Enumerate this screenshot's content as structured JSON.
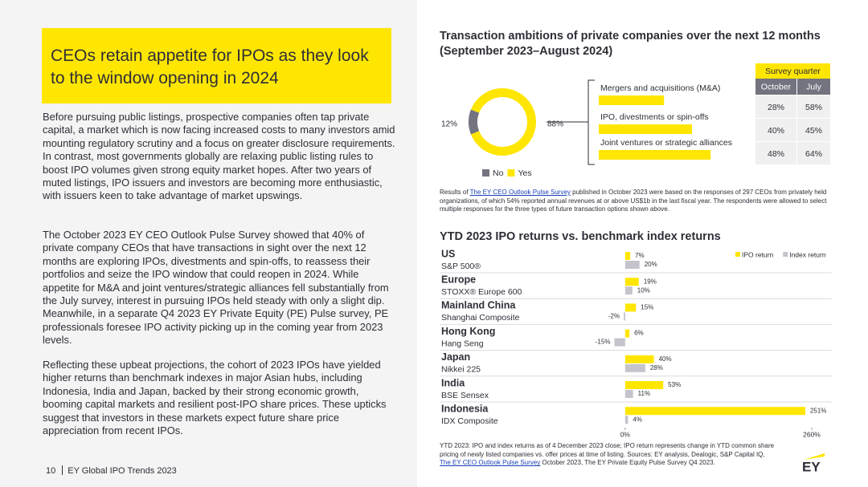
{
  "header": {
    "title": "CEOs retain appetite for IPOs as they look to the window opening in 2024"
  },
  "body": {
    "paragraphs": [
      "Before pursuing public listings, prospective companies often tap private capital, a market which is now facing increased costs to many investors amid mounting regulatory scrutiny and a focus on greater disclosure requirements. In contrast, most governments globally are relaxing public listing rules to boost IPO volumes given strong equity market hopes. After two years of muted listings, IPO issuers and investors are becoming more enthusiastic, with issuers keen to take advantage of market upswings.",
      "The October 2023 EY CEO Outlook Pulse Survey showed that 40% of private company CEOs that have transactions in sight over the next 12 months are exploring IPOs, divestments and spin-offs, to reassess their portfolios and seize the IPO window that could reopen in 2024. While appetite for M&A and joint ventures/strategic alliances fell substantially from the July survey, interest in pursuing IPOs held steady with only a slight dip. Meanwhile, in a separate Q4 2023 EY Private Equity (PE) Pulse survey, PE professionals foresee IPO activity picking up in the coming year from 2023 levels.",
      "Reflecting these upbeat projections, the cohort of 2023 IPOs have yielded higher returns than benchmark indexes in major Asian hubs, including Indonesia, India and Japan, backed by their strong economic growth, booming capital markets and resilient post-IPO share prices. These upticks suggest that investors in these markets expect future share price appreciation from recent IPOs."
    ]
  },
  "footer": {
    "page": "10",
    "publication": "EY Global IPO Trends 2023"
  },
  "logo": "EY",
  "chart_data": [
    {
      "type": "pie",
      "donut": true,
      "title": "Transaction ambitions of private companies over the next 12 months (September 2023–August 2024)",
      "categories": [
        "No",
        "Yes"
      ],
      "values": [
        12,
        88
      ],
      "value_labels": [
        "12%",
        "88%"
      ],
      "colors": [
        "#747480",
        "#ffe600"
      ],
      "legend": "bottom"
    },
    {
      "type": "table-bar",
      "categories": [
        "Mergers and acquisitions (M&A)",
        "IPO, divestments or spin-offs",
        "Joint ventures or strategic alliances"
      ],
      "table_title": "Survey quarter",
      "series": [
        {
          "name": "October",
          "color": "#ffe600",
          "values": [
            28,
            40,
            48
          ],
          "value_labels": [
            "28%",
            "40%",
            "48%"
          ]
        },
        {
          "name": "July",
          "values": [
            58,
            45,
            64
          ],
          "value_labels": [
            "58%",
            "45%",
            "64%"
          ]
        }
      ],
      "note": [
        {
          "text": "Results of "
        },
        {
          "text": "The EY CEO Outlook Pulse Survey",
          "link": true
        },
        {
          "text": " published in October 2023 were based on the responses of 297 CEOs from privately held organizations, of which 54% reported annual revenues at or above US$1b in the last fiscal year. The respondents were allowed to select multiple responses for the three types of future transaction options shown above."
        }
      ]
    },
    {
      "type": "bar",
      "orientation": "horizontal",
      "title": "YTD 2023 IPO returns vs. benchmark index returns",
      "categories": [
        "US",
        "Europe",
        "Mainland China",
        "Hong Kong",
        "Japan",
        "India",
        "Indonesia"
      ],
      "subcategories": [
        "S&P 500®",
        "STOXX® Europe 600",
        "Shanghai Composite",
        "Hang Seng",
        "Nikkei 225",
        "BSE Sensex",
        "IDX Composite"
      ],
      "series": [
        {
          "name": "IPO return",
          "color": "#ffe600",
          "values": [
            7,
            19,
            15,
            6,
            40,
            53,
            251
          ],
          "value_labels": [
            "7%",
            "19%",
            "15%",
            "6%",
            "40%",
            "53%",
            "251%"
          ]
        },
        {
          "name": "Index return",
          "color": "#c4c4cd",
          "values": [
            20,
            10,
            -2,
            -15,
            28,
            11,
            4
          ],
          "value_labels": [
            "20%",
            "10%",
            "-2%",
            "-15%",
            "28%",
            "11%",
            "4%"
          ]
        }
      ],
      "xlim": [
        -20,
        260
      ],
      "xticks": [
        {
          "value": 0,
          "label": "0%"
        },
        {
          "value": 260,
          "label": "260%"
        }
      ],
      "legend": "top-right",
      "note": [
        {
          "text": "YTD 2023: IPO and index returns as of 4 December 2023 close; IPO return represents change in YTD common share pricing of newly listed companies vs. offer prices at time of listing. Sources: EY analysis, Dealogic, S&P Capital IQ, "
        },
        {
          "text": "The EY CEO Outlook Pulse Survey",
          "link": true
        },
        {
          "text": " October 2023, The EY Private Equity Pulse Survey Q4 2023."
        }
      ]
    }
  ]
}
